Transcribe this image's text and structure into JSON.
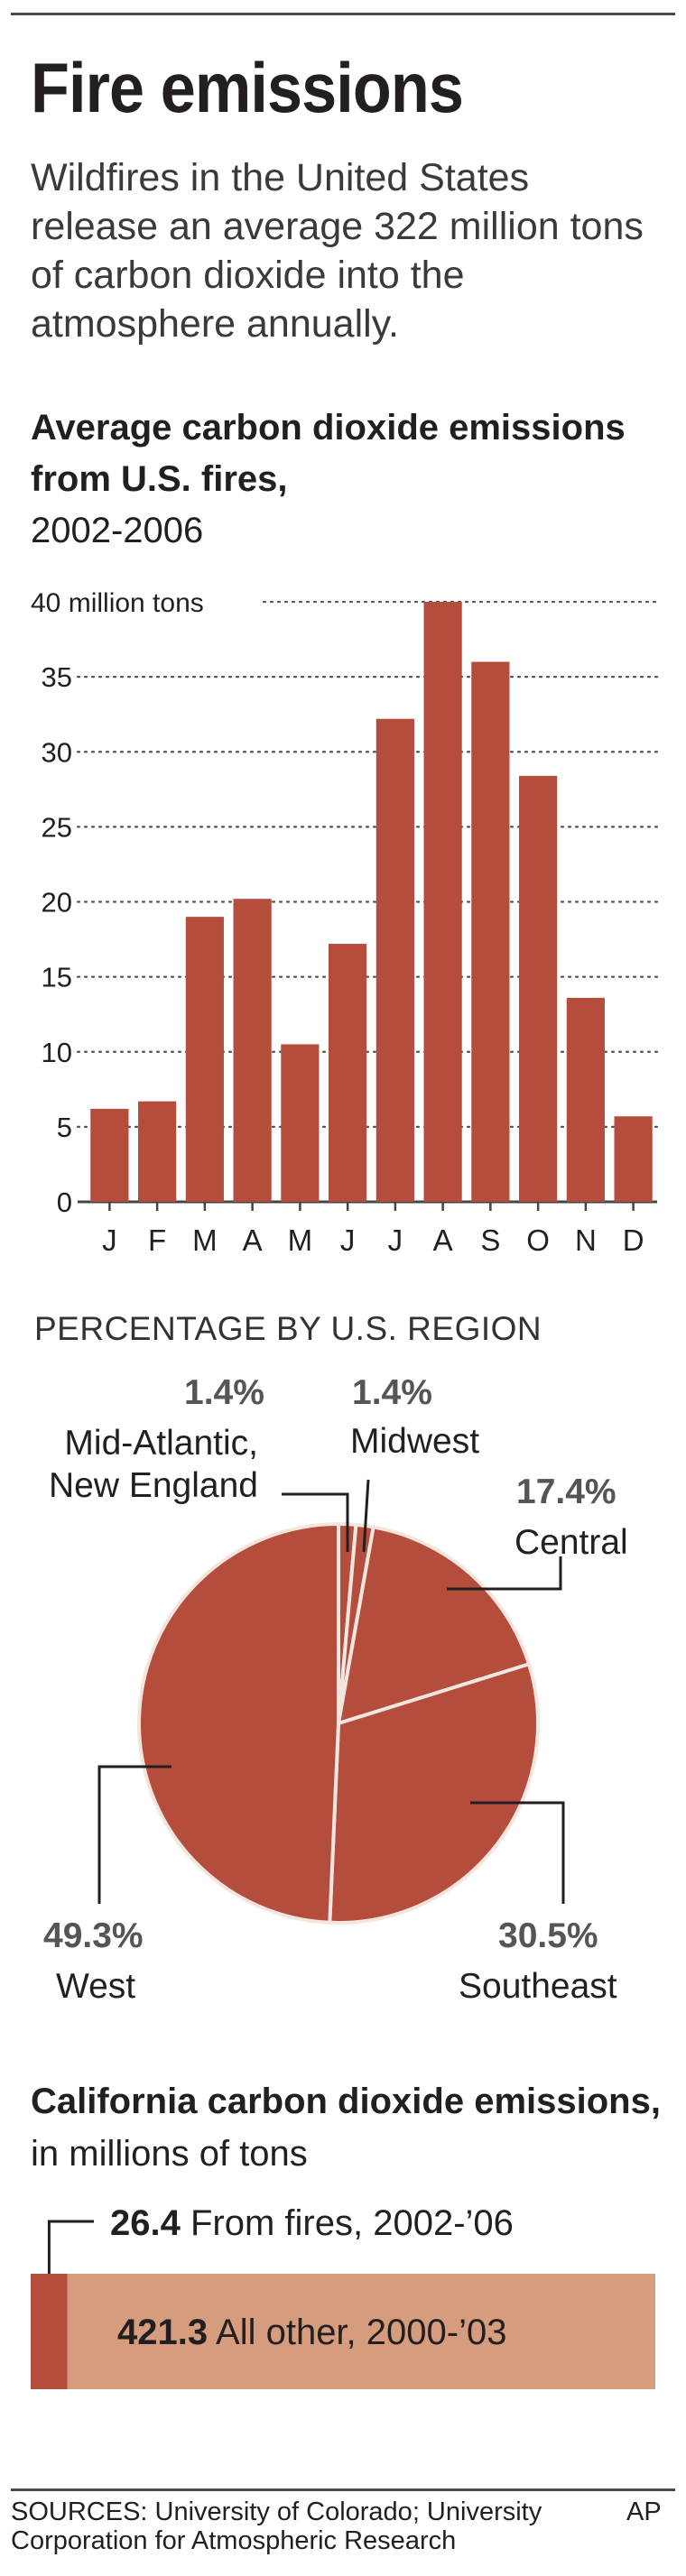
{
  "header": {
    "title": "Fire emissions",
    "intro": "Wildfires in the United States release an average 322 million tons of carbon dioxide into the atmosphere annually."
  },
  "bar_chart": {
    "title_bold": "Average carbon dioxide emissions from U.S. fires,",
    "title_regular": "2002-2006"
  },
  "pie_section": {
    "heading": "PERCENTAGE BY U.S. REGION"
  },
  "california": {
    "title_bold": "California carbon dioxide emissions,",
    "title_regular": "in millions of tons",
    "fires_value": "26.4",
    "fires_label": "From fires, 2002-’06",
    "other_value": "421.3",
    "other_label": "All other, 2000-’03"
  },
  "footer": {
    "sources": "SOURCES: University of Colorado; University Corporation for Atmospheric Research",
    "credit": "AP"
  },
  "colors": {
    "brick": "#b44d3c",
    "light_brick": "#d59c7e",
    "text": "#231f20"
  },
  "chart_data": [
    {
      "type": "bar",
      "categories": [
        "J",
        "F",
        "M",
        "A",
        "M",
        "J",
        "J",
        "A",
        "S",
        "O",
        "N",
        "D"
      ],
      "values": [
        6.2,
        6.7,
        19,
        20.2,
        10.5,
        17.2,
        32.2,
        40,
        36,
        28.4,
        13.6,
        5.7
      ],
      "yticks": [
        "0",
        "5",
        "10",
        "15",
        "20",
        "25",
        "30",
        "35",
        "40 million tons"
      ],
      "ylim": [
        0,
        40
      ],
      "grid": true
    },
    {
      "type": "pie",
      "labels": [
        "Mid-Atlantic, New England",
        "Midwest",
        "Central",
        "Southeast",
        "West"
      ],
      "values": [
        1.4,
        1.4,
        17.4,
        30.5,
        49.3
      ],
      "percent_labels": [
        "1.4%",
        "1.4%",
        "17.4%",
        "30.5%",
        "49.3%"
      ]
    },
    {
      "type": "bar",
      "orientation": "horizontal-stacked",
      "categories": [
        "From fires, 2002-’06",
        "All other, 2000-’03"
      ],
      "values": [
        26.4,
        421.3
      ]
    }
  ]
}
